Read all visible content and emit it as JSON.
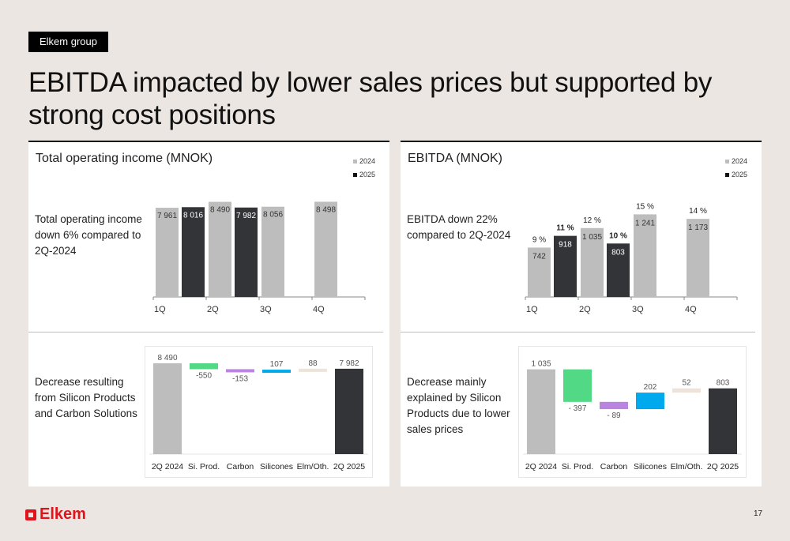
{
  "header": {
    "section_tag": "Elkem group",
    "title": "EBITDA impacted by lower sales prices but supported by strong cost positions"
  },
  "footer": {
    "logo_text": "Elkem",
    "page_number": "17"
  },
  "colors": {
    "y2024": "#bdbdbd",
    "y2025": "#323437",
    "si_prod": "#52d986",
    "carbon": "#b985e0",
    "silicones": "#00a9ee",
    "elm_oth": "#ede3da",
    "brand_red": "#e3131b"
  },
  "panels": {
    "left": {
      "title": "Total operating income (MNOK)",
      "legend": [
        "2024",
        "2025"
      ],
      "description_top": [
        "Total operating income",
        "down 6% compared to",
        "2Q-2024"
      ],
      "description_bottom": [
        "Decrease resulting",
        "from Silicon Products",
        "and Carbon Solutions"
      ]
    },
    "right": {
      "title": "EBITDA (MNOK)",
      "legend": [
        "2024",
        "2025"
      ],
      "description_top": [
        "EBITDA down 22%",
        "compared to 2Q-2024"
      ],
      "description_bottom": [
        "Decrease mainly",
        "explained by Silicon",
        "Products due to lower",
        "sales prices"
      ]
    }
  },
  "chart_data": [
    {
      "id": "toi_quarterly",
      "type": "bar",
      "title": "Total operating income (MNOK)",
      "categories": [
        "1Q",
        "2Q",
        "3Q",
        "4Q"
      ],
      "series": [
        {
          "name": "2024",
          "values": [
            7961,
            8490,
            8056,
            8498
          ],
          "labels": [
            "7 961",
            "8 490",
            "8 056",
            "8 498"
          ]
        },
        {
          "name": "2025",
          "values": [
            8016,
            7982,
            null,
            null
          ],
          "labels": [
            "8 016",
            "7 982",
            "",
            ""
          ]
        }
      ],
      "legend_position": "top-right",
      "ylim": [
        0,
        8600
      ],
      "grid": false
    },
    {
      "id": "ebitda_quarterly",
      "type": "bar",
      "title": "EBITDA (MNOK)",
      "categories": [
        "1Q",
        "2Q",
        "3Q",
        "4Q"
      ],
      "series": [
        {
          "name": "2024",
          "values": [
            742,
            1035,
            1241,
            1173
          ],
          "labels": [
            "742",
            "1 035",
            "1 241",
            "1 173"
          ],
          "margins": [
            "9 %",
            "12 %",
            "15 %",
            "14 %"
          ]
        },
        {
          "name": "2025",
          "values": [
            918,
            803,
            null,
            null
          ],
          "labels": [
            "918",
            "803",
            "",
            ""
          ],
          "margins": [
            "11 %",
            "10 %",
            "",
            ""
          ]
        }
      ],
      "legend_position": "top-right",
      "ylim": [
        0,
        1400
      ],
      "grid": false
    },
    {
      "id": "toi_bridge",
      "type": "bar",
      "subtype": "waterfall",
      "categories": [
        "2Q 2024",
        "Si. Prod.",
        "Carbon",
        "Silicones",
        "Elm/Oth.",
        "2Q 2025"
      ],
      "values": [
        8490,
        -550,
        -153,
        107,
        88,
        7982
      ],
      "labels": [
        "8 490",
        "-550",
        "-153",
        "107",
        "88",
        "7 982"
      ],
      "kinds": [
        "total",
        "delta",
        "delta",
        "delta",
        "delta",
        "total"
      ],
      "color_keys": [
        "y2024",
        "si_prod",
        "carbon",
        "silicones",
        "elm_oth",
        "y2025"
      ]
    },
    {
      "id": "ebitda_bridge",
      "type": "bar",
      "subtype": "waterfall",
      "categories": [
        "2Q 2024",
        "Si. Prod.",
        "Carbon",
        "Silicones",
        "Elm/Oth.",
        "2Q 2025"
      ],
      "values": [
        1035,
        -397,
        -89,
        202,
        52,
        803
      ],
      "labels": [
        "1 035",
        "- 397",
        "- 89",
        "202",
        "52",
        "803"
      ],
      "kinds": [
        "total",
        "delta",
        "delta",
        "delta",
        "delta",
        "total"
      ],
      "color_keys": [
        "y2024",
        "si_prod",
        "carbon",
        "silicones",
        "elm_oth",
        "y2025"
      ]
    }
  ]
}
